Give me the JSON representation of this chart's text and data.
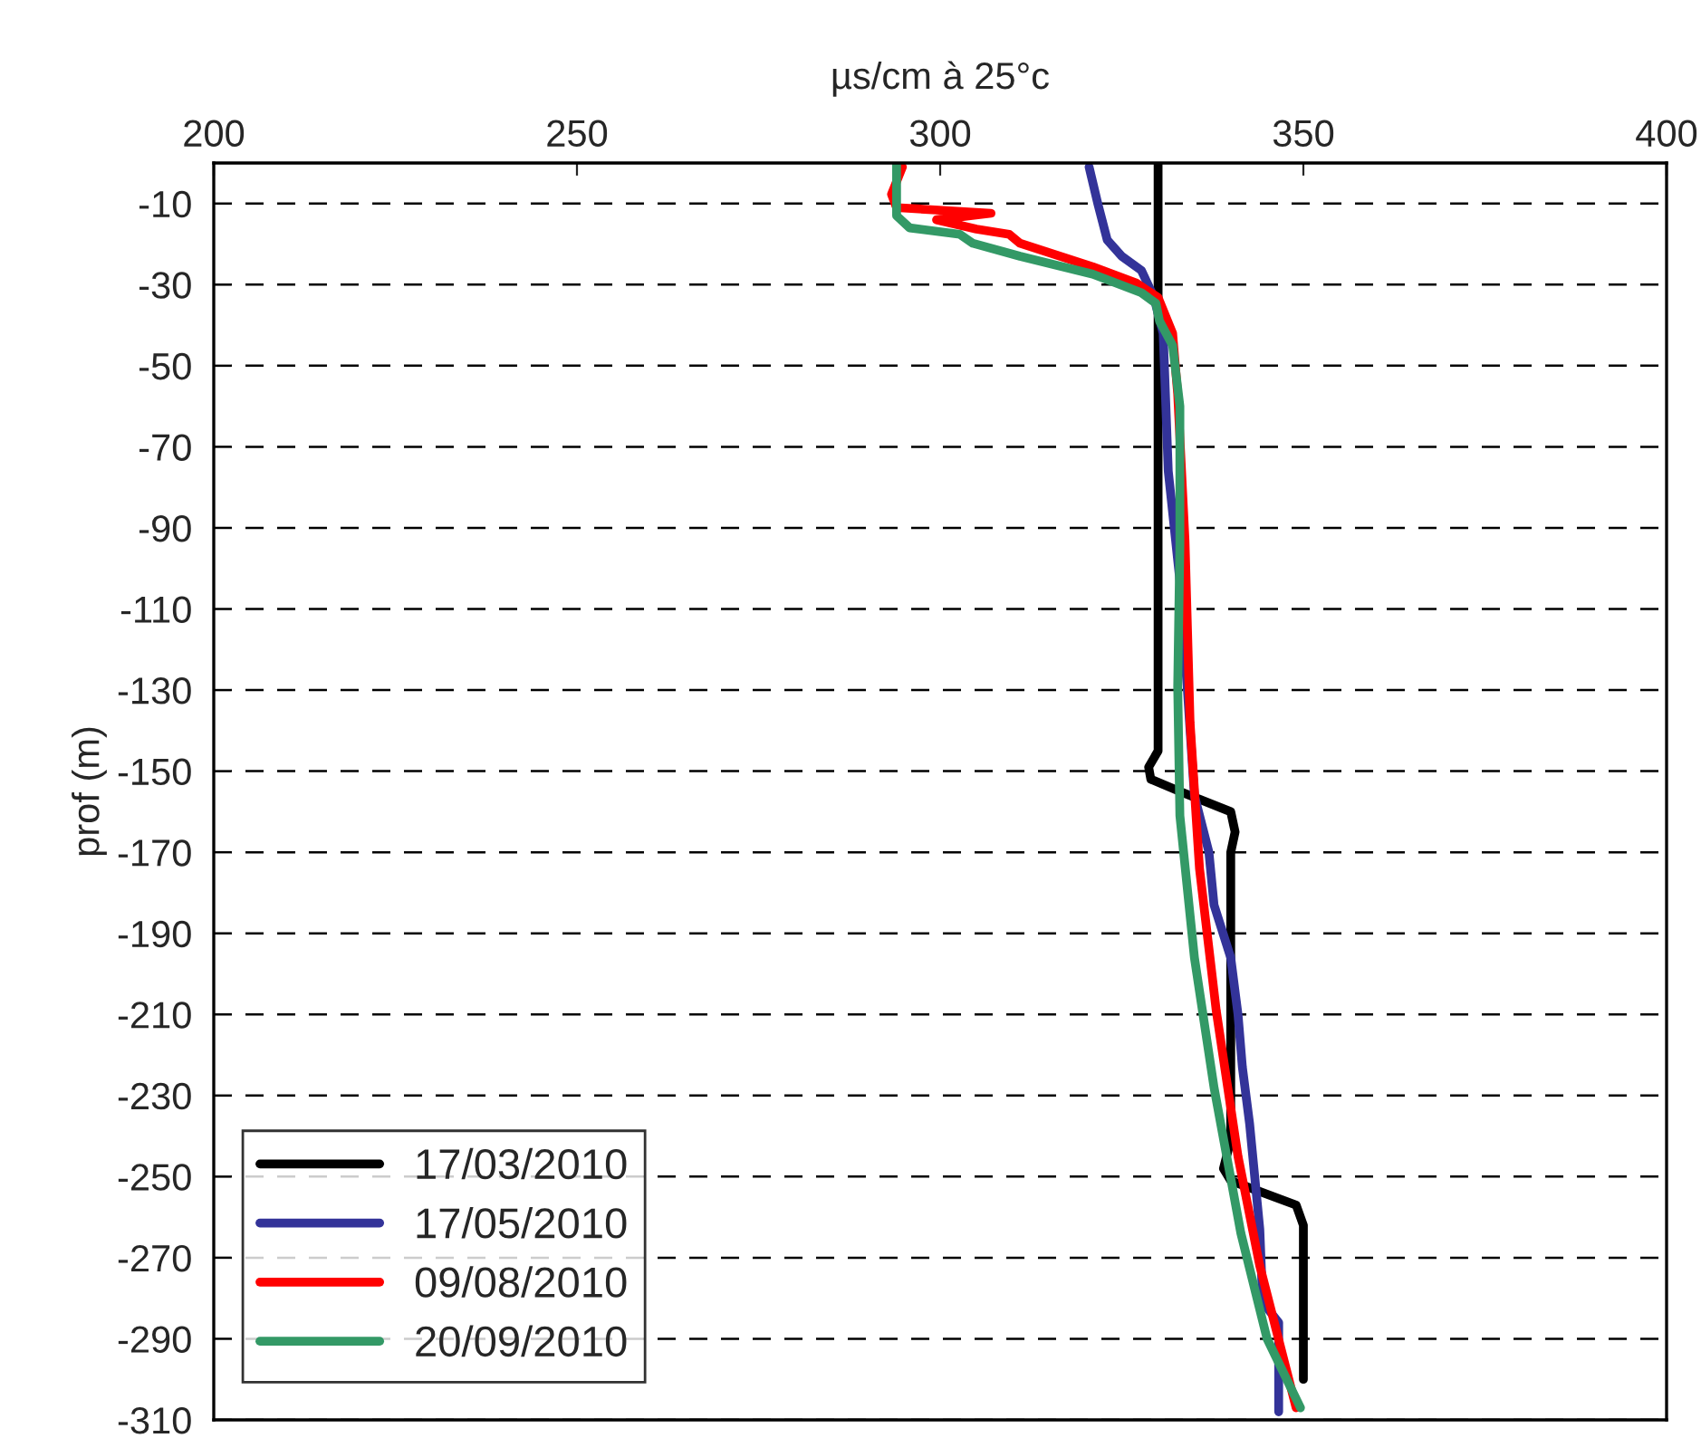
{
  "chart_data": {
    "type": "line",
    "xlabel": "µs/cm à 25°c",
    "ylabel": "prof (m)",
    "xlim": [
      200,
      400
    ],
    "xticks": [
      200,
      250,
      300,
      350,
      400
    ],
    "ylim": [
      -310,
      0
    ],
    "yticks": [
      -10,
      -30,
      -50,
      -70,
      -90,
      -110,
      -130,
      -150,
      -170,
      -190,
      -210,
      -230,
      -250,
      -270,
      -290,
      -310
    ],
    "grid": "y",
    "legend": "bottom left",
    "line_style": "solid",
    "marker": "none",
    "series": [
      {
        "name": "17/03/2010",
        "color": "#000000",
        "x": [
          330,
          330,
          330,
          328.7,
          329,
          333,
          340,
          340.6,
          340,
          340,
          339,
          340,
          349,
          350,
          350
        ],
        "values": [
          0,
          -100,
          -145,
          -149,
          -152,
          -155,
          -160,
          -165,
          -170,
          -241,
          -248,
          -251,
          -257,
          -262,
          -300
        ]
      },
      {
        "name": "17/05/2010",
        "color": "#333399",
        "x": [
          320.5,
          321.7,
          323,
          325,
          327.7,
          329.4,
          330.7,
          331.4,
          333,
          334,
          335,
          337,
          337.7,
          340,
          341,
          341.6,
          342.6,
          344,
          344.4,
          346.6,
          346.6
        ],
        "values": [
          -1,
          -10,
          -19,
          -23,
          -26.5,
          -33,
          -42,
          -76,
          -103,
          -129,
          -156,
          -170,
          -183,
          -196,
          -210,
          -223,
          -237,
          -263,
          -281,
          -286,
          -308
        ]
      },
      {
        "name": "09/08/2010",
        "color": "#ff0000",
        "x": [
          294.8,
          293.3,
          294,
          307,
          299.5,
          305,
          309.5,
          311,
          321,
          327,
          330,
          332,
          332.7,
          333.7,
          334.4,
          335.7,
          338,
          341,
          344,
          349
        ],
        "values": [
          -1,
          -7.7,
          -11,
          -12.4,
          -14,
          -16.3,
          -17.6,
          -19.8,
          -25.6,
          -29.6,
          -33.2,
          -42,
          -57,
          -93,
          -138,
          -174,
          -209,
          -245,
          -272,
          -307
        ]
      },
      {
        "name": "20/09/2010",
        "color": "#339966",
        "x": [
          294,
          294,
          294,
          295.8,
          302.7,
          304.5,
          311,
          321,
          327.7,
          329.7,
          330.2,
          332,
          333,
          333,
          332.7,
          333,
          335,
          337.7,
          341.4,
          345,
          349.6
        ],
        "values": [
          0,
          -10,
          -13,
          -16,
          -17.6,
          -19.8,
          -23,
          -27.4,
          -32,
          -34.6,
          -39,
          -45,
          -60,
          -94,
          -129,
          -161,
          -196,
          -228,
          -264,
          -290,
          -307
        ]
      }
    ]
  }
}
